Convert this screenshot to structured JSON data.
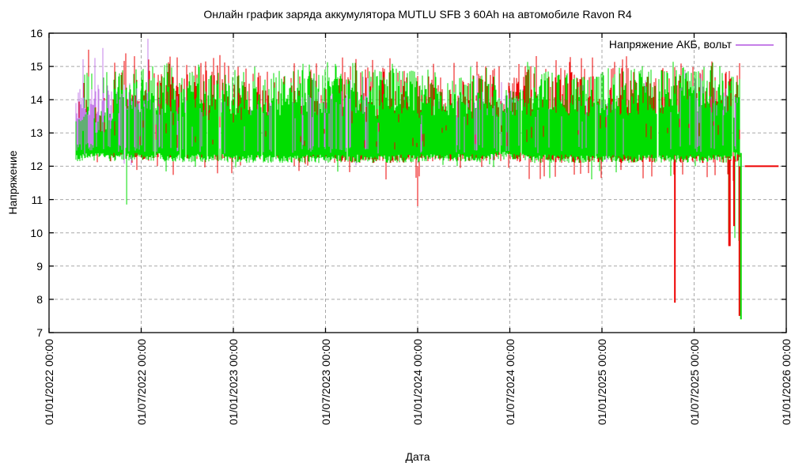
{
  "chart_data": {
    "type": "line",
    "title": "Онлайн график заряда аккумулятора MUTLU SFB 3 60Ah на автомобиле Ravon R4",
    "xlabel": "Дата",
    "ylabel": "Напряжение",
    "ylim": [
      7,
      16
    ],
    "yticks": [
      7,
      8,
      9,
      10,
      11,
      12,
      13,
      14,
      15,
      16
    ],
    "xtick_labels": [
      "01/01/2022 00:00",
      "01/07/2022 00:00",
      "01/01/2023 00:00",
      "01/07/2023 00:00",
      "01/01/2024 00:00",
      "01/07/2024 00:00",
      "01/01/2025 00:00",
      "01/07/2025 00:00",
      "01/01/2026 00:00"
    ],
    "xtick_interval_months": 6,
    "grid": true,
    "legend": {
      "label": "Напряжение АКБ, вольт",
      "position": "top-right",
      "color_key": "violet"
    },
    "colors": {
      "red": "#ee0000",
      "violet": "#c57fe8",
      "green": "#00dd00",
      "grid": "#a8a8a8",
      "frame": "#000000",
      "background": "#ffffff",
      "text": "#000000"
    },
    "time_axis": {
      "months_total": 48,
      "data_start_month": 1.7,
      "data_end_month": 45.0
    },
    "series": [
      {
        "name": "Напряжение АКБ, вольт",
        "color_key": "violet",
        "in_legend": true,
        "segments": [
          {
            "from": 1.7,
            "to": 3.0,
            "density": 0.92,
            "lo": 12.45,
            "hi": 14.35,
            "spike": 15.5,
            "spike_p": 0.07,
            "dip": 12.0,
            "dip_p": 0.03
          },
          {
            "from": 3.0,
            "to": 6.5,
            "density": 0.85,
            "lo": 12.4,
            "hi": 14.5,
            "spike": 15.85,
            "spike_p": 0.05,
            "dip": 12.0,
            "dip_p": 0.03
          },
          {
            "from": 6.5,
            "to": 9.0,
            "density": 0.5,
            "lo": 12.4,
            "hi": 14.2,
            "spike": 14.9,
            "spike_p": 0.03,
            "dip": 12.1,
            "dip_p": 0.02
          },
          {
            "from": 9.0,
            "to": 16.0,
            "density": 0.35,
            "lo": 12.35,
            "hi": 14.0,
            "spike": 14.6,
            "spike_p": 0.03,
            "dip": 12.1,
            "dip_p": 0.02
          },
          {
            "from": 16.0,
            "to": 21.0,
            "density": 0.55,
            "lo": 12.4,
            "hi": 14.3,
            "spike": 14.8,
            "spike_p": 0.03,
            "dip": 12.0,
            "dip_p": 0.03
          },
          {
            "from": 21.0,
            "to": 26.0,
            "density": 0.3,
            "lo": 12.35,
            "hi": 14.15,
            "spike": 14.7,
            "spike_p": 0.03,
            "dip": 12.1,
            "dip_p": 0.02
          },
          {
            "from": 26.0,
            "to": 31.0,
            "density": 0.42,
            "lo": 12.4,
            "hi": 14.35,
            "spike": 14.8,
            "spike_p": 0.03,
            "dip": 12.1,
            "dip_p": 0.02
          },
          {
            "from": 31.0,
            "to": 40.0,
            "density": 0.25,
            "lo": 12.35,
            "hi": 14.25,
            "spike": 14.7,
            "spike_p": 0.03,
            "dip": 12.1,
            "dip_p": 0.02
          },
          {
            "from": 40.0,
            "to": 45.0,
            "density": 0.3,
            "lo": 12.4,
            "hi": 14.45,
            "spike": 14.9,
            "spike_p": 0.04,
            "dip": 12.1,
            "dip_p": 0.02
          }
        ]
      },
      {
        "name": "voltage-layer-red",
        "color_key": "red",
        "in_legend": false,
        "segments": [
          {
            "from": 1.7,
            "to": 4.2,
            "density": 0.45,
            "lo": 12.3,
            "hi": 14.2,
            "spike": 15.7,
            "spike_p": 0.06,
            "dip": 11.8,
            "dip_p": 0.06
          },
          {
            "from": 4.2,
            "to": 7.5,
            "density": 0.55,
            "lo": 12.2,
            "hi": 15.0,
            "spike": 15.4,
            "spike_p": 0.08,
            "dip": 11.8,
            "dip_p": 0.06
          },
          {
            "from": 7.5,
            "to": 13.0,
            "density": 0.7,
            "lo": 12.2,
            "hi": 15.05,
            "spike": 15.35,
            "spike_p": 0.1,
            "dip": 11.7,
            "dip_p": 0.07
          },
          {
            "from": 13.0,
            "to": 18.0,
            "density": 0.55,
            "lo": 12.2,
            "hi": 14.85,
            "spike": 15.2,
            "spike_p": 0.07,
            "dip": 11.7,
            "dip_p": 0.07
          },
          {
            "from": 18.0,
            "to": 24.5,
            "density": 0.65,
            "lo": 12.1,
            "hi": 15.0,
            "spike": 15.3,
            "spike_p": 0.08,
            "dip": 11.5,
            "dip_p": 0.08
          },
          {
            "from": 24.5,
            "to": 30.0,
            "density": 0.6,
            "lo": 12.15,
            "hi": 14.85,
            "spike": 15.15,
            "spike_p": 0.07,
            "dip": 11.7,
            "dip_p": 0.07
          },
          {
            "from": 30.0,
            "to": 38.0,
            "density": 0.78,
            "lo": 12.1,
            "hi": 15.05,
            "spike": 15.35,
            "spike_p": 0.1,
            "dip": 11.6,
            "dip_p": 0.08
          },
          {
            "from": 38.0,
            "to": 45.0,
            "density": 0.7,
            "lo": 12.1,
            "hi": 14.95,
            "spike": 15.25,
            "spike_p": 0.08,
            "dip": 11.4,
            "dip_p": 0.1
          }
        ]
      },
      {
        "name": "voltage-layer-green",
        "color_key": "green",
        "in_legend": false,
        "segments": [
          {
            "from": 1.7,
            "to": 4.2,
            "density": 1.0,
            "lo": 12.15,
            "hi": 13.8,
            "spike": 14.85,
            "spike_p": 0.07,
            "dip": 11.7,
            "dip_p": 0.015
          },
          {
            "from": 4.2,
            "to": 7.5,
            "density": 1.0,
            "lo": 12.15,
            "hi": 14.95,
            "spike": 15.15,
            "spike_p": 0.06,
            "dip": 11.7,
            "dip_p": 0.02
          },
          {
            "from": 7.5,
            "to": 12.0,
            "density": 1.0,
            "lo": 12.12,
            "hi": 14.85,
            "spike": 15.1,
            "spike_p": 0.05,
            "dip": 11.7,
            "dip_p": 0.02
          },
          {
            "from": 12.0,
            "to": 24.0,
            "density": 1.0,
            "lo": 12.1,
            "hi": 14.9,
            "spike": 15.15,
            "spike_p": 0.06,
            "dip": 11.6,
            "dip_p": 0.02
          },
          {
            "from": 24.0,
            "to": 29.0,
            "density": 1.0,
            "lo": 12.12,
            "hi": 14.75,
            "spike": 15.05,
            "spike_p": 0.05,
            "dip": 11.7,
            "dip_p": 0.02
          },
          {
            "from": 29.0,
            "to": 31.0,
            "density": 1.0,
            "lo": 12.2,
            "hi": 14.45,
            "spike": 14.8,
            "spike_p": 0.04,
            "dip": 11.8,
            "dip_p": 0.02
          },
          {
            "from": 31.0,
            "to": 44.2,
            "density": 1.0,
            "lo": 12.1,
            "hi": 14.9,
            "spike": 15.15,
            "spike_p": 0.06,
            "dip": 11.6,
            "dip_p": 0.02
          },
          {
            "from": 44.2,
            "to": 45.0,
            "density": 1.0,
            "lo": 12.2,
            "hi": 14.7,
            "spike": 14.95,
            "spike_p": 0.05,
            "dip": 9.6,
            "dip_p": 0.12
          }
        ]
      }
    ],
    "events": [
      {
        "month": 5.05,
        "color": "green",
        "from": 12.5,
        "to": 10.85,
        "width": 1
      },
      {
        "month": 24.0,
        "color": "red",
        "from": 12.0,
        "to": 10.8,
        "width": 1
      },
      {
        "month": 40.75,
        "color": "red",
        "from": 12.2,
        "to": 7.9,
        "width": 2
      },
      {
        "month": 44.3,
        "color": "red",
        "from": 12.2,
        "to": 9.6,
        "width": 3
      },
      {
        "month": 44.6,
        "color": "red",
        "from": 12.3,
        "to": 10.2,
        "width": 2
      },
      {
        "month": 44.95,
        "color": "red",
        "from": 12.0,
        "to": 7.5,
        "width": 2
      },
      {
        "month": 45.05,
        "color": "green",
        "from": 12.4,
        "to": 7.4,
        "width": 2
      }
    ],
    "flat_tail": {
      "color_key": "red",
      "value": 12.0,
      "from_month": 45.3,
      "to_month": 47.5
    }
  }
}
